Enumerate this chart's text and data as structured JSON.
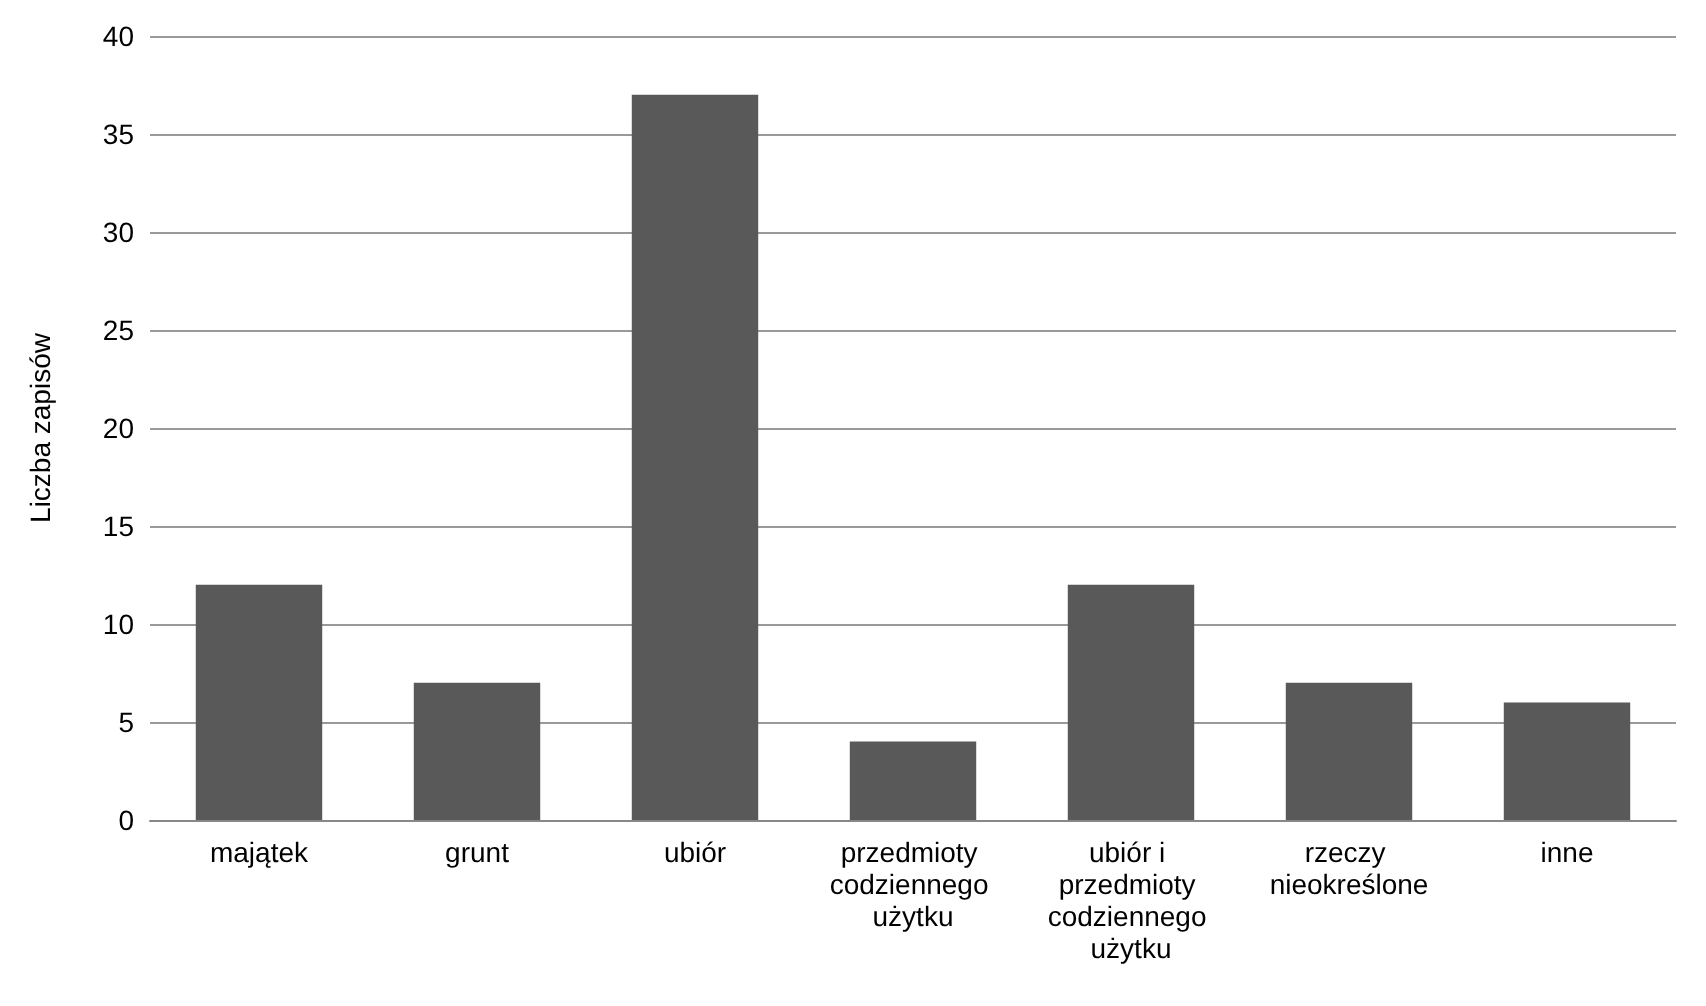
{
  "chart_data": {
    "type": "bar",
    "ylabel": "Liczba zapisów",
    "categories": [
      "majątek",
      "grunt",
      "ubiór",
      "przedmioty codziennego użytku",
      "ubiór i przedmioty codziennego użytku",
      "rzeczy nieokreślone",
      "inne"
    ],
    "values": [
      12,
      7,
      37,
      4,
      12,
      7,
      6
    ],
    "color": "#595959",
    "ylim": [
      0,
      40
    ],
    "yticks": [
      0,
      5,
      10,
      15,
      20,
      25,
      30,
      35,
      40
    ],
    "grid": "y"
  }
}
